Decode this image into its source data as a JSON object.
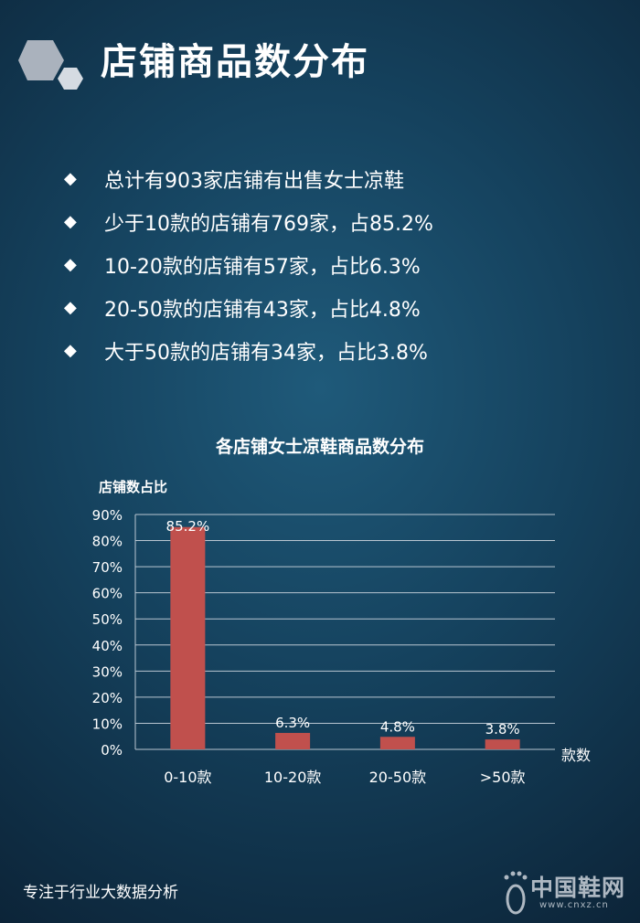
{
  "header": {
    "title": "店铺商品数分布",
    "logo_icon": "hexagon-logo-icon"
  },
  "bullets": [
    "总计有903家店铺有出售女士凉鞋",
    "少于10款的店铺有769家，占85.2%",
    "10-20款的店铺有57家，占比6.3%",
    "20-50款的店铺有43家，占比4.8%",
    "大于50款的店铺有34家，占比3.8%"
  ],
  "bullet_marker": "◆",
  "chart_data": {
    "type": "bar",
    "title": "各店铺女士凉鞋商品数分布",
    "ylabel": "店铺数占比",
    "xlabel": "款数",
    "categories": [
      "0-10款",
      "10-20款",
      "20-50款",
      ">50款"
    ],
    "values": [
      85.2,
      6.3,
      4.8,
      3.8
    ],
    "data_labels": [
      "85.2%",
      "6.3%",
      "4.8%",
      "3.8%"
    ],
    "ylim": [
      0,
      90
    ],
    "yticks": [
      "0%",
      "10%",
      "20%",
      "30%",
      "40%",
      "50%",
      "60%",
      "70%",
      "80%",
      "90%"
    ],
    "grid": true,
    "bar_color": "#c0504d"
  },
  "footer": {
    "text": "专注于行业大数据分析",
    "brand_name": "中国鞋网",
    "brand_url": "www.cnxz.cn",
    "brand_icon": "footprint-icon"
  }
}
